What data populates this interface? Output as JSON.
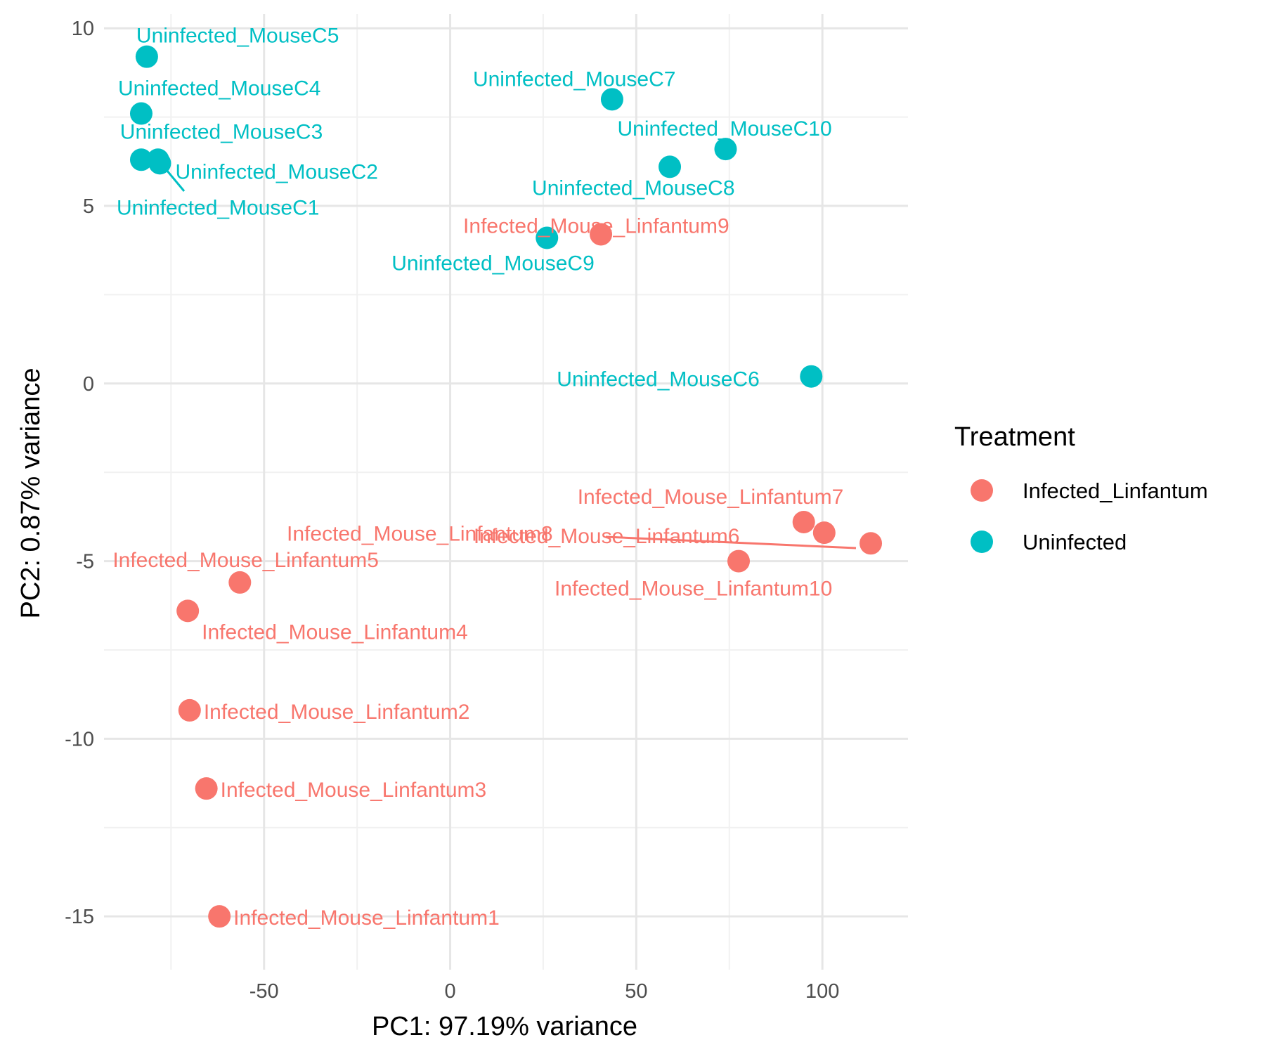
{
  "chart_data": {
    "type": "scatter",
    "title": "",
    "xlabel": "PC1: 97.19% variance",
    "ylabel": "PC2: 0.87% variance",
    "xlim": [
      -93,
      123
    ],
    "ylim": [
      -16.5,
      10.4
    ],
    "x_ticks": [
      -50,
      0,
      50,
      100
    ],
    "y_ticks": [
      -15,
      -10,
      -5,
      0,
      5,
      10
    ],
    "x_tick_labels": [
      "-50",
      "0",
      "50",
      "100"
    ],
    "y_tick_labels": [
      "-15",
      "-10",
      "-5",
      "0",
      "5",
      "10"
    ],
    "grid": true,
    "legend": {
      "title": "Treatment",
      "placement": "right",
      "entries": [
        {
          "label": "Infected_Linfantum",
          "color": "#F8766D"
        },
        {
          "label": "Uninfected",
          "color": "#00BFC4"
        }
      ]
    },
    "series": [
      {
        "name": "Infected_Linfantum",
        "color": "#F8766D",
        "points": [
          {
            "label": "Infected_Mouse_Linfantum1",
            "x": -62,
            "y": -15.0
          },
          {
            "label": "Infected_Mouse_Linfantum2",
            "x": -70,
            "y": -9.2
          },
          {
            "label": "Infected_Mouse_Linfantum3",
            "x": -65.5,
            "y": -11.4
          },
          {
            "label": "Infected_Mouse_Linfantum4",
            "x": -70.5,
            "y": -6.4
          },
          {
            "label": "Infected_Mouse_Linfantum5",
            "x": -56.5,
            "y": -5.6
          },
          {
            "label": "Infected_Mouse_Linfantum6",
            "x": 100.5,
            "y": -4.2
          },
          {
            "label": "Infected_Mouse_Linfantum7",
            "x": 95,
            "y": -3.9
          },
          {
            "label": "Infected_Mouse_Linfantum8",
            "x": 113,
            "y": -4.5
          },
          {
            "label": "Infected_Mouse_Linfantum9",
            "x": 40.5,
            "y": 4.2
          },
          {
            "label": "Infected_Mouse_Linfantum10",
            "x": 77.5,
            "y": -5.0
          }
        ]
      },
      {
        "name": "Uninfected",
        "color": "#00BFC4",
        "points": [
          {
            "label": "Uninfected_MouseC1",
            "x": -83,
            "y": 6.3
          },
          {
            "label": "Uninfected_MouseC2",
            "x": -78,
            "y": 6.2
          },
          {
            "label": "Uninfected_MouseC3",
            "x": -78.5,
            "y": 6.3
          },
          {
            "label": "Uninfected_MouseC4",
            "x": -83,
            "y": 7.6
          },
          {
            "label": "Uninfected_MouseC5",
            "x": -81.5,
            "y": 9.2
          },
          {
            "label": "Uninfected_MouseC6",
            "x": 97,
            "y": 0.2
          },
          {
            "label": "Uninfected_MouseC7",
            "x": 43.5,
            "y": 8.0
          },
          {
            "label": "Uninfected_MouseC8",
            "x": 59,
            "y": 6.1
          },
          {
            "label": "Uninfected_MouseC9",
            "x": 26,
            "y": 4.1
          },
          {
            "label": "Uninfected_MouseC10",
            "x": 74,
            "y": 6.6
          }
        ]
      }
    ]
  }
}
